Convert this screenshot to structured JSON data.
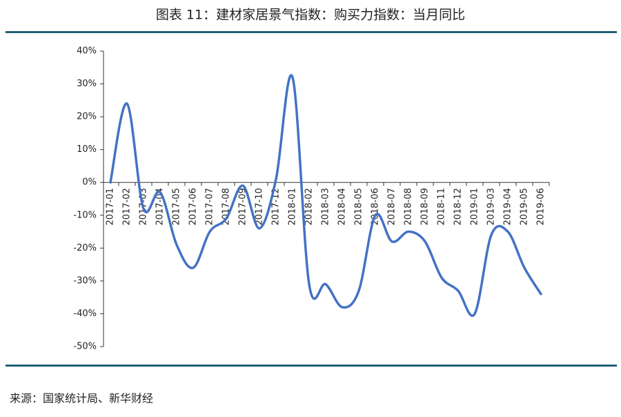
{
  "chart_data": {
    "type": "line",
    "title": "图表 11：建材家居景气指数：购买力指数：当月同比",
    "source": "来源：国家统计局、新华财经",
    "categories": [
      "2017-01",
      "2017-02",
      "2017-03",
      "2017-04",
      "2017-05",
      "2017-06",
      "2017-07",
      "2017-08",
      "2017-09",
      "2017-10",
      "2017-12",
      "2018-01",
      "2018-02",
      "2018-03",
      "2018-04",
      "2018-05",
      "2018-06",
      "2018-07",
      "2018-08",
      "2018-09",
      "2018-11",
      "2018-12",
      "2019-01",
      "2019-03",
      "2019-04",
      "2019-05",
      "2019-06"
    ],
    "values": [
      0,
      24,
      -8,
      -3,
      -19,
      -26,
      -15,
      -11,
      -1,
      -14,
      1,
      32,
      -31,
      -31,
      -38,
      -33,
      -10,
      -18,
      -15,
      -18,
      -29,
      -33,
      -40,
      -16,
      -15,
      -26,
      -34
    ],
    "color": "#4472c4",
    "ylim": [
      -50,
      40
    ],
    "yticks": [
      {
        "value": -50,
        "label": "-50%"
      },
      {
        "value": -40,
        "label": "-40%"
      },
      {
        "value": -30,
        "label": "-30%"
      },
      {
        "value": -20,
        "label": "-20%"
      },
      {
        "value": -10,
        "label": "-10%"
      },
      {
        "value": 0,
        "label": "0%"
      },
      {
        "value": 10,
        "label": "10%"
      },
      {
        "value": 20,
        "label": "20%"
      },
      {
        "value": 30,
        "label": "30%"
      },
      {
        "value": 40,
        "label": "40%"
      }
    ],
    "grid": false
  }
}
